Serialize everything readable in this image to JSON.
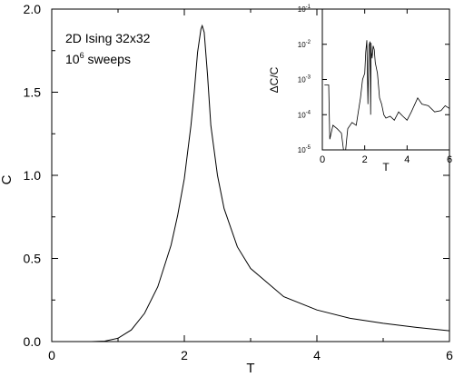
{
  "chart_data": [
    {
      "type": "line",
      "xlabel": "T",
      "ylabel": "C",
      "xlim": [
        0,
        6
      ],
      "ylim": [
        0,
        2.0
      ],
      "x_ticks": [
        "0",
        "2",
        "4",
        "6"
      ],
      "y_ticks": [
        "0.0",
        "0.5",
        "1.0",
        "1.5",
        "2.0"
      ],
      "annotation_line1": "2D Ising 32x32",
      "annotation_line2_base": "10",
      "annotation_line2_exp": "6",
      "annotation_line2_rest": " sweeps",
      "grid": false,
      "series": [
        {
          "x": [
            0.6,
            0.8,
            1.0,
            1.2,
            1.4,
            1.6,
            1.8,
            1.9,
            2.0,
            2.1,
            2.15,
            2.2,
            2.25,
            2.27,
            2.3,
            2.35,
            2.4,
            2.5,
            2.6,
            2.8,
            3.0,
            3.5,
            4.0,
            4.5,
            5.0,
            5.5,
            6.0
          ],
          "y": [
            0.0,
            0.003,
            0.02,
            0.07,
            0.17,
            0.33,
            0.58,
            0.76,
            0.98,
            1.3,
            1.5,
            1.74,
            1.88,
            1.9,
            1.86,
            1.6,
            1.3,
            1.0,
            0.8,
            0.57,
            0.44,
            0.27,
            0.19,
            0.14,
            0.11,
            0.085,
            0.065
          ]
        }
      ]
    },
    {
      "type": "line",
      "xlabel": "T",
      "ylabel": "ΔC/C",
      "xlim": [
        0,
        6
      ],
      "ylim": [
        1e-05,
        0.1
      ],
      "yscale": "log",
      "x_ticks": [
        "0",
        "2",
        "4",
        "6"
      ],
      "y_tick_base": "10",
      "y_tick_exps": [
        "-5",
        "-4",
        "-3",
        "-2",
        "-1"
      ],
      "grid": false,
      "series": [
        {
          "x": [
            0.1,
            0.2,
            0.3,
            0.35,
            0.5,
            0.7,
            0.9,
            1.0,
            1.1,
            1.15,
            1.2,
            1.4,
            1.6,
            1.8,
            1.9,
            2.0,
            2.05,
            2.1,
            2.15,
            2.2,
            2.25,
            2.28,
            2.3,
            2.32,
            2.35,
            2.4,
            2.45,
            2.5,
            2.6,
            2.7,
            2.8,
            2.9,
            3.0,
            3.2,
            3.4,
            3.6,
            3.8,
            4.0,
            4.2,
            4.5,
            4.7,
            5.0,
            5.3,
            5.6,
            5.8,
            6.0
          ],
          "y": [
            0.0007,
            0.0007,
            0.0007,
            2e-05,
            5e-05,
            4e-05,
            3e-05,
            1e-05,
            1e-05,
            2e-05,
            4e-05,
            6e-05,
            5e-05,
            0.0003,
            0.001,
            0.0015,
            0.006,
            0.013,
            0.0002,
            0.009,
            0.012,
            0.0001,
            0.011,
            0.006,
            0.004,
            0.009,
            0.007,
            0.003,
            0.0015,
            0.0003,
            0.0002,
            0.0001,
            8e-05,
            9e-05,
            7e-05,
            0.00012,
            9e-05,
            7e-05,
            0.00012,
            0.0003,
            0.0002,
            0.00018,
            0.00012,
            0.00013,
            0.00018,
            0.00015
          ]
        }
      ]
    }
  ]
}
